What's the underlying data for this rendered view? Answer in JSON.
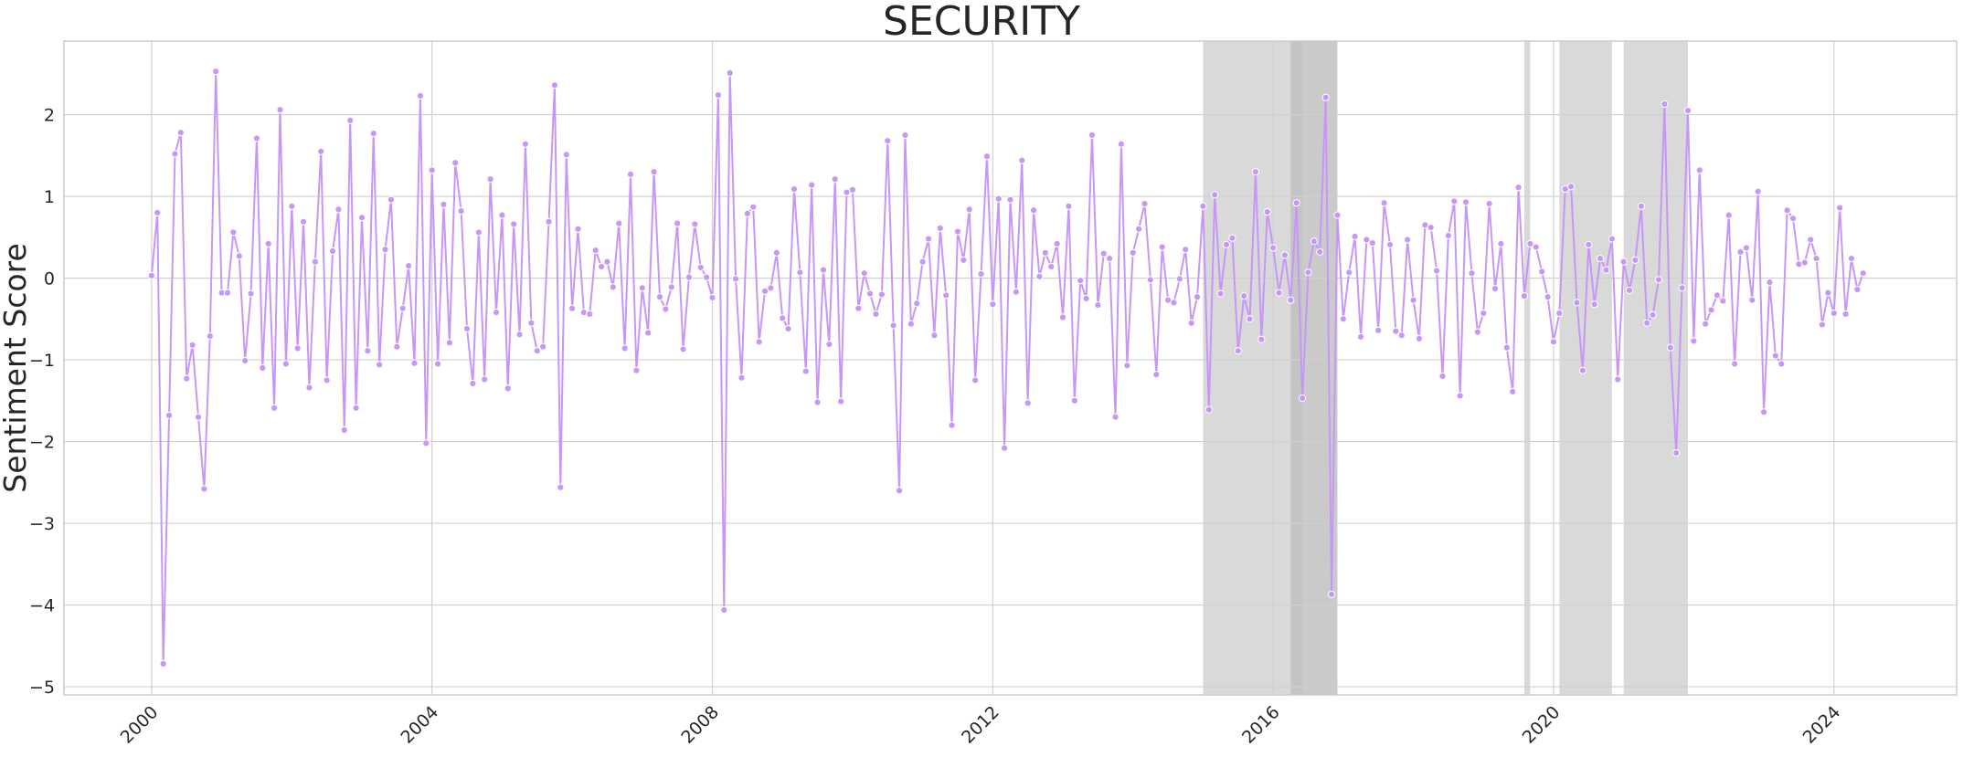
{
  "chart_data": {
    "type": "line",
    "title": "SECURITY",
    "xlabel": "",
    "ylabel": "Sentiment Score",
    "x_axis": {
      "type": "date",
      "min": "1998-10-01",
      "max": "2025-10-01",
      "ticks": [
        "2000",
        "2004",
        "2008",
        "2012",
        "2016",
        "2020",
        "2024"
      ]
    },
    "y_axis": {
      "min": -5.1,
      "max": 2.9,
      "ticks": [
        2,
        1,
        0,
        -1,
        -2,
        -3,
        -4,
        -5
      ]
    },
    "grid": true,
    "legend": "none",
    "colors": {
      "line": "#c797f7",
      "marker_fill": "#c797f7",
      "marker_edge": "#ffffff",
      "band": "#bfbfbf",
      "grid": "#d0d0d0",
      "frame": "#cccccc"
    },
    "shaded_regions": [
      {
        "start": "2015-01",
        "end": "2016-06"
      },
      {
        "start": "2016-04",
        "end": "2016-12"
      },
      {
        "start": "2016-04",
        "end": "2016-12"
      },
      {
        "start": "2019-08",
        "end": "2019-09"
      },
      {
        "start": "2020-02",
        "end": "2020-11"
      },
      {
        "start": "2021-01",
        "end": "2021-12"
      }
    ],
    "series": [
      {
        "frequency": "monthly",
        "start": "2000-01",
        "values": [
          0.03,
          0.8,
          -4.72,
          -1.68,
          1.52,
          1.78,
          -1.23,
          -0.82,
          -1.7,
          -2.58,
          -0.71,
          2.53,
          -0.18,
          -0.18,
          0.56,
          0.27,
          -1.01,
          -0.19,
          1.71,
          -1.1,
          0.42,
          -1.59,
          2.06,
          -1.05,
          0.88,
          -0.86,
          0.69,
          -1.34,
          0.2,
          1.55,
          -1.25,
          0.33,
          0.84,
          -1.86,
          1.93,
          -1.59,
          0.74,
          -0.89,
          1.77,
          -1.06,
          0.35,
          0.96,
          -0.84,
          -0.37,
          0.15,
          -1.04,
          2.23,
          -2.02,
          1.32,
          -1.05,
          0.9,
          -0.79,
          1.41,
          0.82,
          -0.62,
          -1.29,
          0.56,
          -1.24,
          1.21,
          -0.42,
          0.77,
          -1.35,
          0.66,
          -0.69,
          1.64,
          -0.55,
          -0.89,
          -0.84,
          0.69,
          2.36,
          -2.56,
          1.51,
          -0.37,
          0.6,
          -0.42,
          -0.44,
          0.34,
          0.14,
          0.2,
          -0.11,
          0.67,
          -0.86,
          1.27,
          -1.13,
          -0.12,
          -0.67,
          1.3,
          -0.23,
          -0.38,
          -0.11,
          0.67,
          -0.87,
          0.01,
          0.66,
          0.13,
          0.01,
          -0.24,
          2.24,
          -4.06,
          2.51,
          -0.01,
          -1.22,
          0.79,
          0.87,
          -0.78,
          -0.16,
          -0.12,
          0.31,
          -0.49,
          -0.62,
          1.09,
          0.07,
          -1.14,
          1.14,
          -1.52,
          0.1,
          -0.81,
          1.21,
          -1.51,
          1.05,
          1.08,
          -0.37,
          0.06,
          -0.19,
          -0.44,
          -0.2,
          1.68,
          -0.58,
          -2.6,
          1.75,
          -0.56,
          -0.31,
          0.2,
          0.48,
          -0.7,
          0.61,
          -0.21,
          -1.8,
          0.57,
          0.22,
          0.84,
          -1.25,
          0.05,
          1.49,
          -0.32,
          0.97,
          -2.08,
          0.96,
          -0.17,
          1.44,
          -1.53,
          0.83,
          0.02,
          0.31,
          0.14,
          0.42,
          -0.48,
          0.88,
          -1.5,
          -0.03,
          -0.25,
          1.75,
          -0.33,
          0.3,
          0.24,
          -1.7,
          1.64,
          -1.07,
          0.31,
          0.6,
          0.91,
          -0.02,
          -1.18,
          0.38,
          -0.27,
          -0.3,
          -0.01,
          0.35,
          -0.55,
          -0.23,
          0.88,
          -1.61,
          1.02,
          -0.19,
          0.41,
          0.49,
          -0.89,
          -0.22,
          -0.5,
          1.3,
          -0.75,
          0.81,
          0.37,
          -0.18,
          0.28,
          -0.27,
          0.92,
          -1.47,
          0.07,
          0.45,
          0.32,
          2.21,
          -3.87,
          0.77,
          -0.5,
          0.07,
          0.51,
          -0.72,
          0.47,
          0.43,
          -0.64,
          0.92,
          0.41,
          -0.65,
          -0.7,
          0.47,
          -0.27,
          -0.74,
          0.65,
          0.62,
          0.09,
          -1.2,
          0.52,
          0.94,
          -1.44,
          0.93,
          0.06,
          -0.66,
          -0.43,
          0.91,
          -0.13,
          0.42,
          -0.85,
          -1.39,
          1.11,
          -0.22,
          0.42,
          0.38,
          0.08,
          -0.23,
          -0.78,
          -0.43,
          1.09,
          1.12,
          -0.3,
          -1.13,
          0.41,
          -0.32,
          0.24,
          0.1,
          0.48,
          -1.24,
          0.2,
          -0.15,
          0.22,
          0.88,
          -0.55,
          -0.45,
          -0.02,
          2.13,
          -0.85,
          -2.14,
          -0.12,
          2.05,
          -0.77,
          1.32,
          -0.56,
          -0.39,
          -0.21,
          -0.28,
          0.77,
          -1.05,
          0.32,
          0.37,
          -0.27,
          1.06,
          -1.64,
          -0.05,
          -0.95,
          -1.05,
          0.83,
          0.73,
          0.17,
          0.19,
          0.47,
          0.24,
          -0.57,
          -0.18,
          -0.43,
          0.86,
          -0.44,
          0.24,
          -0.14,
          0.06
        ]
      }
    ]
  }
}
